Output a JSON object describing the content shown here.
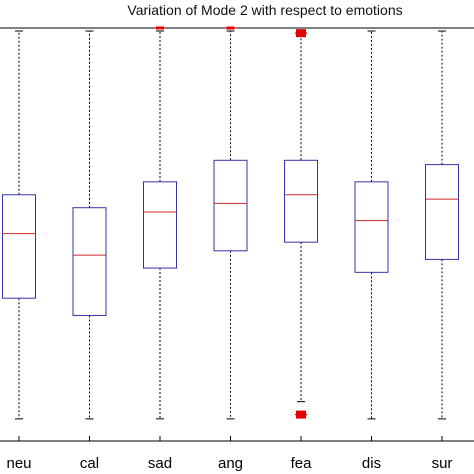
{
  "chart_data": {
    "type": "box",
    "title": "Variation of Mode 2 with respect to emotions",
    "xlabel": "",
    "ylabel": "",
    "categories": [
      "neu",
      "cal",
      "sad",
      "ang",
      "fea",
      "dis",
      "sur"
    ],
    "ylim": [
      0,
      1
    ],
    "grid": false,
    "box_color": "#3333aa",
    "median_color": "#cc2a2a",
    "whisker_color": "#000000",
    "outlier_color": "#e00000",
    "boxes": [
      {
        "label": "neu",
        "whisker_low": 0.03,
        "q1": 0.31,
        "median": 0.46,
        "q3": 0.55,
        "whisker_high": 0.93,
        "outliers": []
      },
      {
        "label": "cal",
        "whisker_low": 0.03,
        "q1": 0.27,
        "median": 0.41,
        "q3": 0.52,
        "whisker_high": 0.93,
        "outliers": []
      },
      {
        "label": "sad",
        "whisker_low": 0.03,
        "q1": 0.38,
        "median": 0.51,
        "q3": 0.58,
        "whisker_high": 0.93,
        "outliers": [
          0.937
        ]
      },
      {
        "label": "ang",
        "whisker_low": 0.03,
        "q1": 0.42,
        "median": 0.53,
        "q3": 0.63,
        "whisker_high": 0.93,
        "outliers": [
          0.937
        ]
      },
      {
        "label": "fea",
        "whisker_low": 0.07,
        "q1": 0.44,
        "median": 0.55,
        "q3": 0.63,
        "whisker_high": 0.93,
        "outliers": [
          0.925,
          0.04
        ]
      },
      {
        "label": "dis",
        "whisker_low": 0.03,
        "q1": 0.37,
        "median": 0.49,
        "q3": 0.58,
        "whisker_high": 0.93,
        "outliers": []
      },
      {
        "label": "sur",
        "whisker_low": 0.03,
        "q1": 0.4,
        "median": 0.54,
        "q3": 0.62,
        "whisker_high": 0.93,
        "outliers": []
      }
    ]
  }
}
